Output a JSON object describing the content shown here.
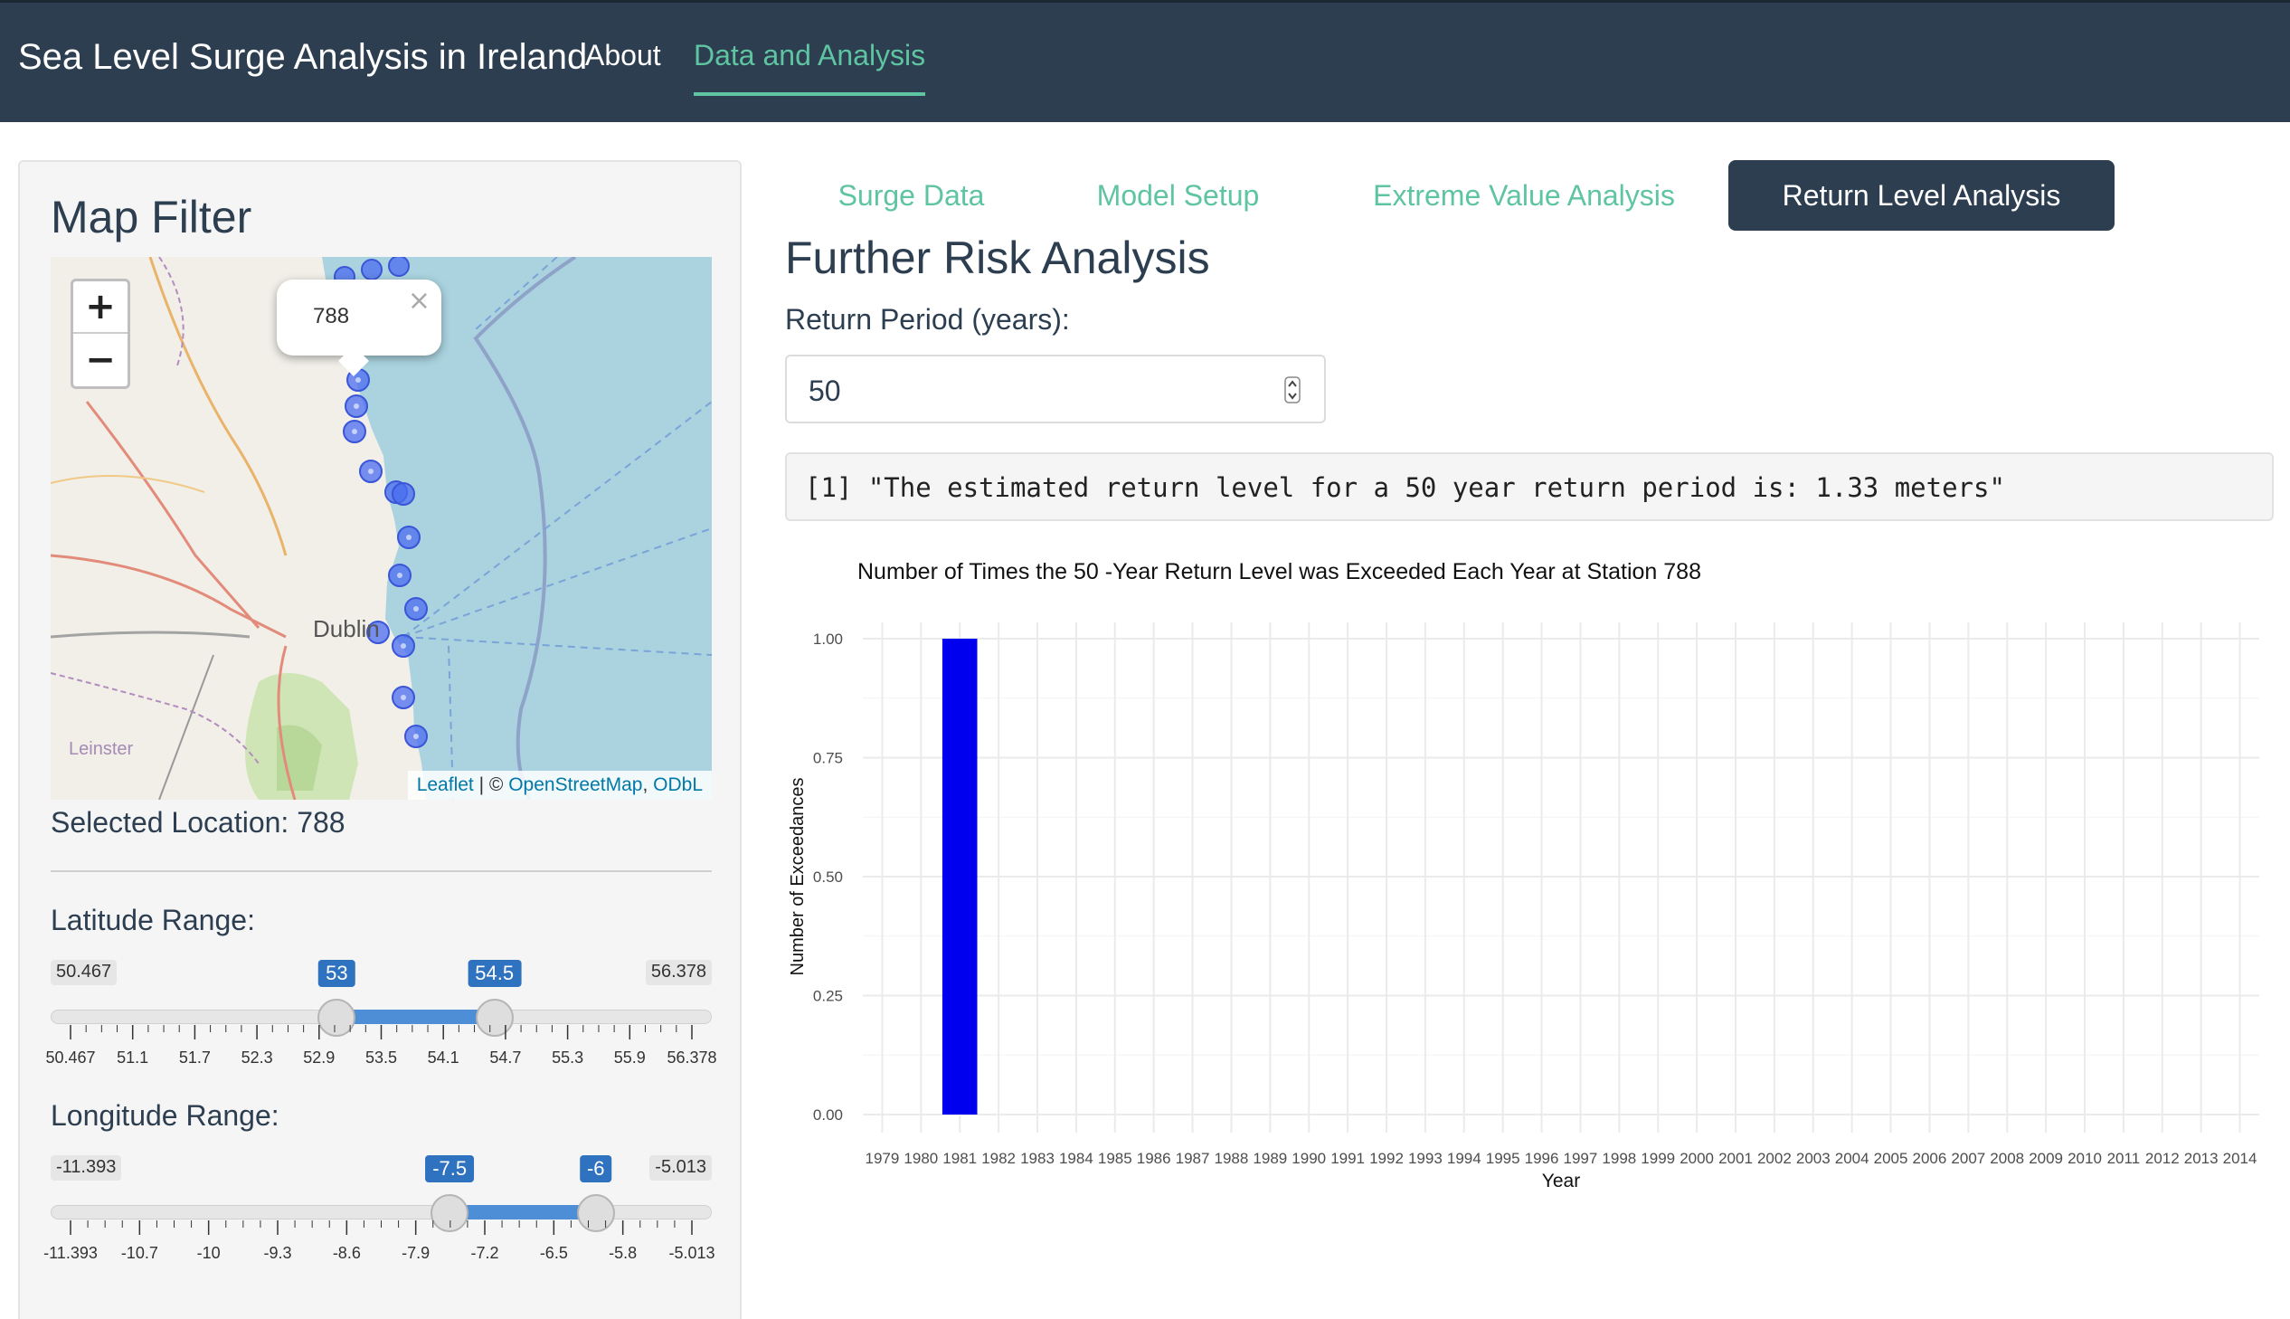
{
  "navbar": {
    "brand": "Sea Level Surge Analysis in Ireland",
    "links": [
      "About",
      "Data and Analysis"
    ],
    "active_link": "Data and Analysis",
    "bg_color": "#2c3e50",
    "accent_color": "#5ec4a1"
  },
  "sidebar": {
    "title": "Map Filter",
    "map": {
      "zoom_in": "+",
      "zoom_out": "−",
      "popup_text": "788",
      "popup_close": "×",
      "city_label": "Dublin",
      "region_label": "Leinster",
      "attribution": {
        "leaflet": "Leaflet",
        "sep": " | © ",
        "osm": "OpenStreetMap",
        "comma": ", ",
        "odbl": "ODbL"
      },
      "marker_color": "#4a6cf0"
    },
    "selected_location": "Selected Location: 788",
    "latitude": {
      "label": "Latitude Range:",
      "min": 50.467,
      "max": 56.378,
      "from": 53,
      "to": 54.5,
      "min_label": "50.467",
      "max_label": "56.378",
      "from_label": "53",
      "to_label": "54.5",
      "ticks": [
        "50.467",
        "51.1",
        "51.7",
        "52.3",
        "52.9",
        "53.5",
        "54.1",
        "54.7",
        "55.3",
        "55.9",
        "56.378"
      ]
    },
    "longitude": {
      "label": "Longitude Range:",
      "min": -11.393,
      "max": -5.013,
      "from": -7.5,
      "to": -6,
      "min_label": "-11.393",
      "max_label": "-5.013",
      "from_label": "-7.5",
      "to_label": "-6",
      "ticks": [
        "-11.393",
        "-10.7",
        "-10",
        "-9.3",
        "-8.6",
        "-7.9",
        "-7.2",
        "-6.5",
        "-5.8",
        "-5.013"
      ]
    }
  },
  "tabs": [
    "Surge Data",
    "Model Setup",
    "Extreme Value Analysis",
    "Return Level Analysis"
  ],
  "active_tab": "Return Level Analysis",
  "main": {
    "title": "Further Risk Analysis",
    "return_period_label": "Return Period (years):",
    "return_period_value": "50",
    "output_text": "[1] \"The estimated return level for a 50 year return period is: 1.33 meters\""
  },
  "chart_data": {
    "type": "bar",
    "title": "Number of Times the 50 -Year Return Level was Exceeded Each Year at Station 788",
    "xlabel": "Year",
    "ylabel": "Number of Exceedances",
    "ylim": [
      0,
      1
    ],
    "y_ticks": [
      "0.00",
      "0.25",
      "0.50",
      "0.75",
      "1.00"
    ],
    "categories": [
      "1979",
      "1980",
      "1981",
      "1982",
      "1983",
      "1984",
      "1985",
      "1986",
      "1987",
      "1988",
      "1989",
      "1990",
      "1991",
      "1992",
      "1993",
      "1994",
      "1995",
      "1996",
      "1997",
      "1998",
      "1999",
      "2000",
      "2001",
      "2002",
      "2003",
      "2004",
      "2005",
      "2006",
      "2007",
      "2008",
      "2009",
      "2010",
      "2011",
      "2012",
      "2013",
      "2014"
    ],
    "values": [
      0,
      0,
      1,
      0,
      0,
      0,
      0,
      0,
      0,
      0,
      0,
      0,
      0,
      0,
      0,
      0,
      0,
      0,
      0,
      0,
      0,
      0,
      0,
      0,
      0,
      0,
      0,
      0,
      0,
      0,
      0,
      0,
      0,
      0,
      0,
      0
    ],
    "bar_color": "#0000ee",
    "grid": true
  }
}
